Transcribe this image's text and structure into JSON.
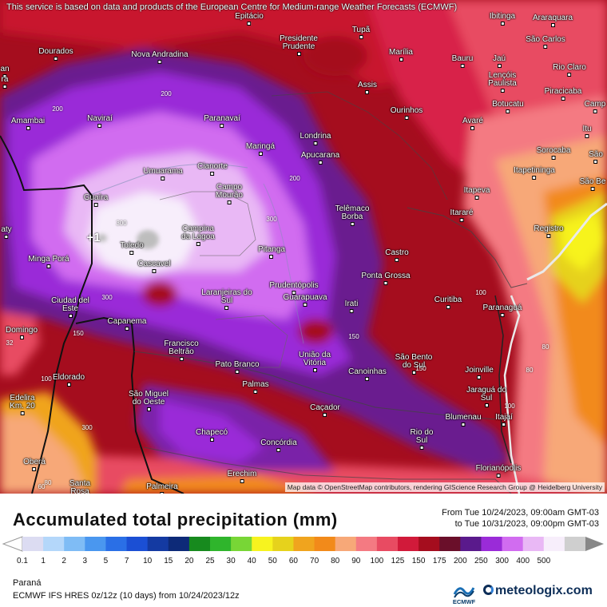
{
  "map": {
    "disclaimer": "This service is based on data and products of the European Centre for Medium-range Weather Forecasts (ECMWF)",
    "attribution": "Map data © OpenStreetMap contributors, rendering GIScience Research Group @ Heidelberg University",
    "cities": [
      {
        "id": "epitacio",
        "name": "Epitácio"
      },
      {
        "id": "tupa",
        "name": "Tupã"
      },
      {
        "id": "ibitinga",
        "name": "Ibitinga"
      },
      {
        "id": "araraquara",
        "name": "Araraquara"
      },
      {
        "id": "presidente-prudente",
        "name": "Presidente Prudente"
      },
      {
        "id": "sao-carlos",
        "name": "São Carlos"
      },
      {
        "id": "dourados",
        "name": "Dourados"
      },
      {
        "id": "nova-andradina",
        "name": "Nova Andradina"
      },
      {
        "id": "marilia",
        "name": "Marília"
      },
      {
        "id": "bauru",
        "name": "Bauru"
      },
      {
        "id": "jau",
        "name": "Jaú"
      },
      {
        "id": "rio-claro",
        "name": "Rio Claro"
      },
      {
        "id": "lencois-paulista",
        "name": "Lençóis Paulista"
      },
      {
        "id": "assis",
        "name": "Assis"
      },
      {
        "id": "piracicaba",
        "name": "Piracicaba"
      },
      {
        "id": "amambai",
        "name": "Amambai"
      },
      {
        "id": "navirai",
        "name": "Naviraí"
      },
      {
        "id": "paranavai",
        "name": "Paranavaí"
      },
      {
        "id": "ourinhos",
        "name": "Ourinhos"
      },
      {
        "id": "botucatu",
        "name": "Botucatu"
      },
      {
        "id": "camp",
        "name": "Camp"
      },
      {
        "id": "avare",
        "name": "Avaré"
      },
      {
        "id": "itu",
        "name": "Itu"
      },
      {
        "id": "londrina",
        "name": "Londrina"
      },
      {
        "id": "maringa",
        "name": "Maringá"
      },
      {
        "id": "sorocaba",
        "name": "Sorocaba"
      },
      {
        "id": "sao",
        "name": "São"
      },
      {
        "id": "apucarana",
        "name": "Apucarana"
      },
      {
        "id": "itapetininga",
        "name": "Itapetininga"
      },
      {
        "id": "umuarama",
        "name": "Umuarama"
      },
      {
        "id": "cianorte",
        "name": "Cianorte"
      },
      {
        "id": "sao-be",
        "name": "São Be"
      },
      {
        "id": "campo-mourao",
        "name": "Campo Mourão"
      },
      {
        "id": "itapeva",
        "name": "Itapeva"
      },
      {
        "id": "guaira",
        "name": "Guaíra"
      },
      {
        "id": "telemaco-borba",
        "name": "Telêmaco Borba"
      },
      {
        "id": "itarare",
        "name": "Itararé"
      },
      {
        "id": "campina-da-lagoa",
        "name": "Campina da Lagoa"
      },
      {
        "id": "registro",
        "name": "Registro"
      },
      {
        "id": "toledo",
        "name": "Toledo"
      },
      {
        "id": "pitanga",
        "name": "Pitanga"
      },
      {
        "id": "castro",
        "name": "Castro"
      },
      {
        "id": "minga-pora",
        "name": "Minga Porá"
      },
      {
        "id": "cascavel",
        "name": "Cascavel"
      },
      {
        "id": "ponta-grossa",
        "name": "Ponta Grossa"
      },
      {
        "id": "prudentopolis",
        "name": "Prudentópolis"
      },
      {
        "id": "laranjeiras-do-sul",
        "name": "Laranjeiras do Sul"
      },
      {
        "id": "guarapuava",
        "name": "Guarapuava"
      },
      {
        "id": "curitiba",
        "name": "Curitiba"
      },
      {
        "id": "paranagua",
        "name": "Paranaguá"
      },
      {
        "id": "ciudad-del-este",
        "name": "Ciudad del Este"
      },
      {
        "id": "irati",
        "name": "Irati"
      },
      {
        "id": "capanema",
        "name": "Capanema"
      },
      {
        "id": "domingo",
        "name": "Domingo"
      },
      {
        "id": "francisco-beltrao",
        "name": "Francisco Beltrão"
      },
      {
        "id": "uniao-da-vitoria",
        "name": "União da Vitória"
      },
      {
        "id": "sao-bento-do-sul",
        "name": "São Bento do Sul"
      },
      {
        "id": "pato-branco",
        "name": "Pato Branco"
      },
      {
        "id": "canoinhas",
        "name": "Canoinhas"
      },
      {
        "id": "joinville",
        "name": "Joinville"
      },
      {
        "id": "eldorado",
        "name": "Eldorado"
      },
      {
        "id": "palmas",
        "name": "Palmas"
      },
      {
        "id": "jaragua-do-sul",
        "name": "Jaraguá do Sul"
      },
      {
        "id": "edelira",
        "name": "Edelira Km. 20"
      },
      {
        "id": "sao-miguel-do-oeste",
        "name": "São Miguel do Oeste"
      },
      {
        "id": "cacador",
        "name": "Caçador"
      },
      {
        "id": "blumenau",
        "name": "Blumenau"
      },
      {
        "id": "itajai",
        "name": "Itajaí"
      },
      {
        "id": "chapeco",
        "name": "Chapecó"
      },
      {
        "id": "rio-do-sul",
        "name": "Rio do Sul"
      },
      {
        "id": "concordia",
        "name": "Concórdia"
      },
      {
        "id": "obera",
        "name": "Oberá"
      },
      {
        "id": "florianopolis",
        "name": "Florianópolis"
      },
      {
        "id": "erechim",
        "name": "Erechim"
      },
      {
        "id": "santa-rosa",
        "name": "Santa Rosa"
      },
      {
        "id": "palmeira",
        "name": "Palmeira"
      },
      {
        "id": "aty",
        "name": "aty"
      },
      {
        "id": "an",
        "name": "an"
      },
      {
        "id": "ra",
        "name": "ra"
      }
    ],
    "contour_labels": [
      "200",
      "200",
      "300",
      "300",
      "300",
      "200",
      "150",
      "100",
      "80",
      "80",
      "100",
      "150",
      "32",
      "300",
      "150",
      "100",
      "80",
      "60"
    ],
    "storm_marker": "+1"
  },
  "legend": {
    "title": "Accumulated total precipitation (mm)",
    "from": "From Tue 10/24/2023, 09:00am GMT-03",
    "to": "to Tue 10/31/2023, 09:00pm GMT-03",
    "ticks": [
      "0.1",
      "1",
      "2",
      "3",
      "5",
      "7",
      "10",
      "15",
      "20",
      "25",
      "30",
      "40",
      "50",
      "60",
      "70",
      "80",
      "90",
      "100",
      "125",
      "150",
      "175",
      "200",
      "250",
      "300",
      "400",
      "500"
    ],
    "colors": [
      "#dcdcf2",
      "#b4d7fa",
      "#7fbcf5",
      "#4a97ef",
      "#2a6fe6",
      "#1b4fd4",
      "#143aa2",
      "#0d2a78",
      "#178a1e",
      "#2fb52c",
      "#78d636",
      "#f7f31f",
      "#e6d21c",
      "#f0a41e",
      "#f28a1a",
      "#f7a878",
      "#f47a82",
      "#e84b62",
      "#d11a3a",
      "#a50d1e",
      "#6a0f2a",
      "#5a1a8c",
      "#9a2bd8",
      "#d16cf0",
      "#e9b8f5",
      "#f7eefb",
      "#cfcfcf"
    ],
    "colors_note_end": "#888888",
    "region": "Paraná",
    "model": "ECMWF IFS HRES 0z/12z (10 days) from 10/24/2023/12z",
    "ecmwf_label": "ECMWF",
    "brand": "meteologix.com"
  }
}
